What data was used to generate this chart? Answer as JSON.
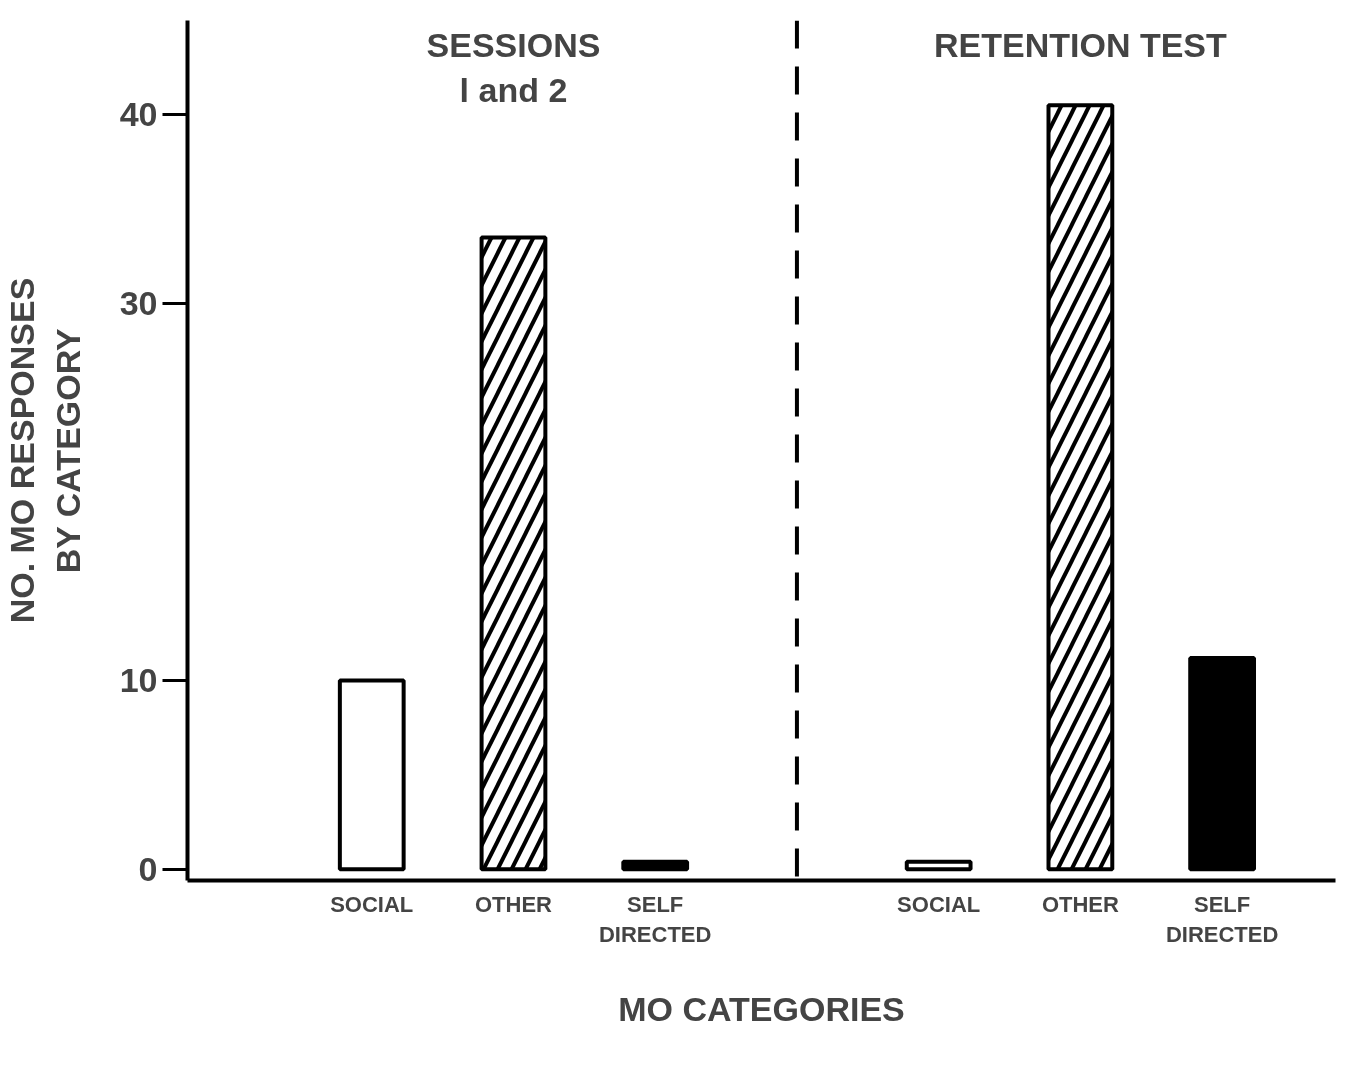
{
  "chart_data": {
    "type": "bar",
    "categories": [
      "SOCIAL",
      "OTHER",
      "SELF\nDIRECTED",
      "SOCIAL",
      "OTHER",
      "SELF\nDIRECTED"
    ],
    "values": [
      10,
      33.5,
      0.4,
      0.4,
      40.5,
      11.2
    ],
    "colors": [
      "#ffffff",
      "#ffffff",
      "#000000",
      "#ffffff",
      "#ffffff",
      "#000000"
    ],
    "xlabel": "MO CATEGORIES",
    "ylabel": "NO. MO RESPONSES\nBY CATEGORY",
    "annotations": [
      "SESSIONS\nl and 2",
      "RETENTION TEST"
    ],
    "ylim": [
      -0.6,
      45
    ],
    "yticks": [
      0,
      10,
      30,
      40
    ],
    "grid": false
  }
}
